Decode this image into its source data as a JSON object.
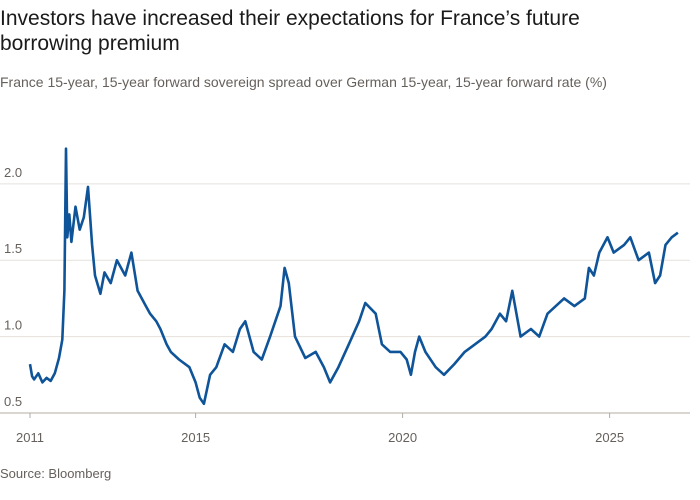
{
  "chart_data": {
    "type": "line",
    "title": "Investors have increased their expectations for France’s future borrowing premium",
    "subtitle": "France 15-year, 15-year forward sovereign spread over German 15-year, 15-year forward rate (%)",
    "source": "Source: Bloomberg",
    "x": [
      2011.0,
      2011.05,
      2011.1,
      2011.2,
      2011.3,
      2011.4,
      2011.5,
      2011.6,
      2011.7,
      2011.78,
      2011.83,
      2011.87,
      2011.9,
      2011.95,
      2012.0,
      2012.1,
      2012.2,
      2012.3,
      2012.4,
      2012.5,
      2012.57,
      2012.7,
      2012.8,
      2012.95,
      2013.1,
      2013.3,
      2013.45,
      2013.6,
      2013.8,
      2013.9,
      2014.05,
      2014.15,
      2014.3,
      2014.4,
      2014.6,
      2014.85,
      2015.0,
      2015.1,
      2015.2,
      2015.35,
      2015.5,
      2015.7,
      2015.9,
      2016.07,
      2016.2,
      2016.4,
      2016.6,
      2016.8,
      2017.05,
      2017.15,
      2017.25,
      2017.4,
      2017.65,
      2017.9,
      2018.1,
      2018.25,
      2018.45,
      2018.7,
      2018.95,
      2019.1,
      2019.35,
      2019.5,
      2019.7,
      2019.95,
      2020.1,
      2020.2,
      2020.3,
      2020.4,
      2020.55,
      2020.8,
      2021.0,
      2021.25,
      2021.5,
      2021.75,
      2022.0,
      2022.15,
      2022.35,
      2022.5,
      2022.65,
      2022.85,
      2023.1,
      2023.3,
      2023.5,
      2023.7,
      2023.9,
      2024.15,
      2024.4,
      2024.5,
      2024.62,
      2024.75,
      2024.95,
      2025.1,
      2025.35,
      2025.5,
      2025.7,
      2025.95,
      2026.1,
      2026.22,
      2026.35,
      2026.5,
      2026.65
    ],
    "series": [
      {
        "name": "France 15-year, 15-year forward spread",
        "color": "#0f5499",
        "axis": "y",
        "values": [
          0.82,
          0.74,
          0.72,
          0.76,
          0.7,
          0.73,
          0.71,
          0.76,
          0.86,
          0.98,
          1.3,
          2.23,
          1.65,
          1.8,
          1.62,
          1.85,
          1.7,
          1.78,
          1.98,
          1.6,
          1.4,
          1.28,
          1.42,
          1.35,
          1.5,
          1.4,
          1.55,
          1.3,
          1.2,
          1.15,
          1.1,
          1.05,
          0.95,
          0.9,
          0.85,
          0.8,
          0.7,
          0.6,
          0.56,
          0.75,
          0.8,
          0.95,
          0.9,
          1.05,
          1.1,
          0.9,
          0.85,
          1.0,
          1.2,
          1.45,
          1.35,
          1.0,
          0.86,
          0.9,
          0.8,
          0.7,
          0.8,
          0.95,
          1.1,
          1.22,
          1.15,
          0.95,
          0.9,
          0.9,
          0.85,
          0.75,
          0.9,
          1.0,
          0.9,
          0.8,
          0.75,
          0.82,
          0.9,
          0.95,
          1.0,
          1.05,
          1.15,
          1.1,
          1.3,
          1.0,
          1.05,
          1.0,
          1.15,
          1.2,
          1.25,
          1.2,
          1.25,
          1.45,
          1.4,
          1.55,
          1.65,
          1.55,
          1.6,
          1.65,
          1.5,
          1.55,
          1.35,
          1.4,
          1.6,
          1.65,
          1.68
        ]
      }
    ],
    "xlim": [
      2011.0,
      2026.8
    ],
    "xticks": [
      2011,
      2015,
      2020,
      2025
    ],
    "ylim": [
      0.5,
      2.3
    ],
    "yticks": [
      {
        "value": 0.5,
        "label": "0.5"
      },
      {
        "value": 1,
        "label": "1.0"
      },
      {
        "value": 1.5,
        "label": "1.5"
      },
      {
        "value": 2,
        "label": "2.0"
      }
    ],
    "grid": true
  }
}
